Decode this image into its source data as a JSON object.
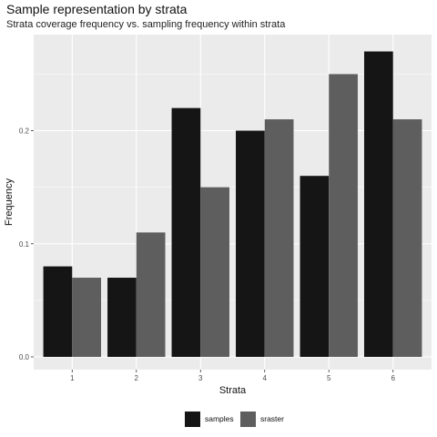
{
  "chart_data": {
    "type": "bar",
    "title": "Sample representation by strata",
    "subtitle": "Strata coverage frequency vs. sampling frequency within strata",
    "xlabel": "Strata",
    "ylabel": "Frequency",
    "categories": [
      "1",
      "2",
      "3",
      "4",
      "5",
      "6"
    ],
    "series": [
      {
        "name": "samples",
        "color": "#151515",
        "values": [
          0.08,
          0.07,
          0.22,
          0.2,
          0.16,
          0.27
        ]
      },
      {
        "name": "sraster",
        "color": "#5e5e5e",
        "values": [
          0.07,
          0.11,
          0.15,
          0.21,
          0.25,
          0.21
        ]
      }
    ],
    "ylim": [
      0,
      0.28
    ],
    "yticks": [
      0.0,
      0.1,
      0.2
    ],
    "ytick_labels": [
      "0.0",
      "0.1",
      "0.2"
    ],
    "grid": true,
    "panel_background": "#ebebeb",
    "gridline_color": "#ffffff",
    "legend_position": "bottom"
  }
}
